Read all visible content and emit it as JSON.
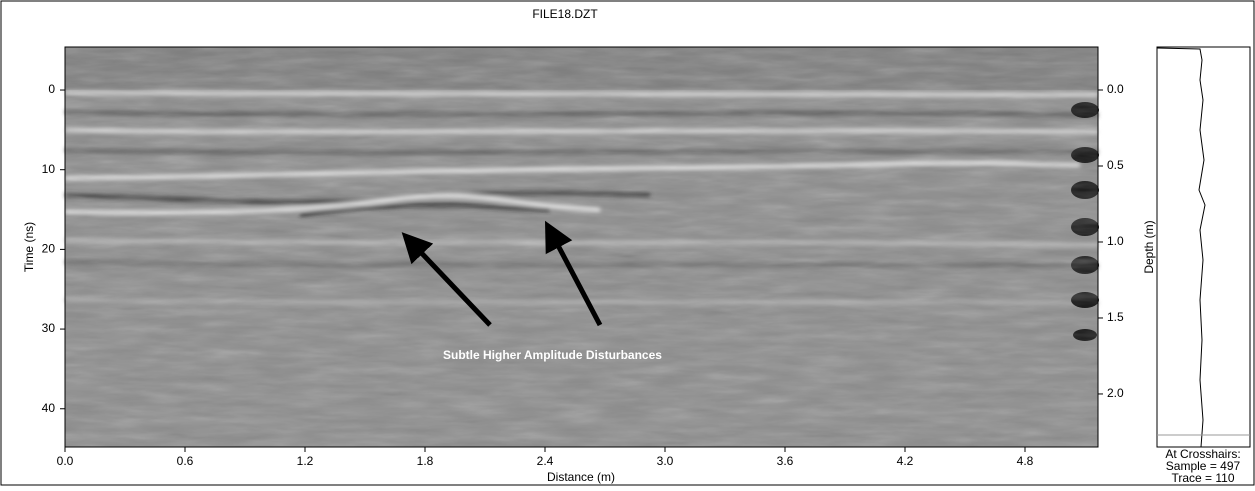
{
  "chart_data": {
    "type": "radargram",
    "title": "FILE18.DZT",
    "x_label": "Distance (m)",
    "y_label": "Time (ns)",
    "y2_label": "Depth (m)",
    "xlim": [
      0,
      5.165
    ],
    "xticks": [
      {
        "value": 0,
        "label": "0.0"
      },
      0.6,
      1.2,
      1.8,
      2.4,
      {
        "value": 3,
        "label": "3.0"
      },
      3.6,
      4.2,
      4.8
    ],
    "ylim": [
      -5.4,
      44.8
    ],
    "yticks": [
      0,
      10,
      20,
      30,
      40
    ],
    "y2lim": [
      -0.283,
      2.349
    ],
    "y2ticks": [
      {
        "value": 0,
        "label": "0.0"
      },
      0.5,
      {
        "value": 1,
        "label": "1.0"
      },
      1.5,
      {
        "value": 2,
        "label": "2.0"
      }
    ],
    "annotation": "Subtle Higher Amplitude Disturbances",
    "crosshair": [
      "At Crosshairs:",
      "Sample = 497",
      "Trace = 110"
    ]
  }
}
